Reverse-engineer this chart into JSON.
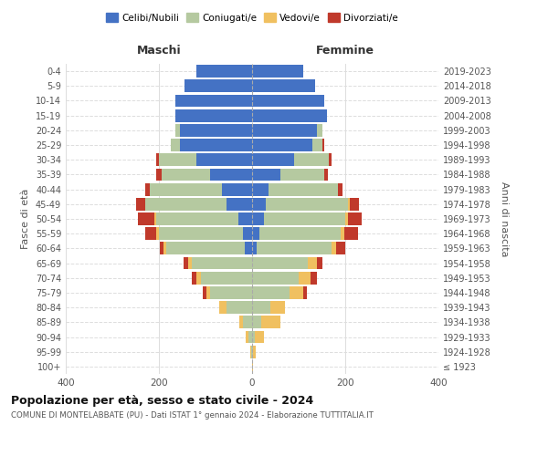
{
  "age_groups": [
    "100+",
    "95-99",
    "90-94",
    "85-89",
    "80-84",
    "75-79",
    "70-74",
    "65-69",
    "60-64",
    "55-59",
    "50-54",
    "45-49",
    "40-44",
    "35-39",
    "30-34",
    "25-29",
    "20-24",
    "15-19",
    "10-14",
    "5-9",
    "0-4"
  ],
  "birth_years": [
    "≤ 1923",
    "1924-1928",
    "1929-1933",
    "1934-1938",
    "1939-1943",
    "1944-1948",
    "1949-1953",
    "1954-1958",
    "1959-1963",
    "1964-1968",
    "1969-1973",
    "1974-1978",
    "1979-1983",
    "1984-1988",
    "1989-1993",
    "1994-1998",
    "1999-2003",
    "2004-2008",
    "2009-2013",
    "2014-2018",
    "2019-2023"
  ],
  "male": {
    "celibi": [
      0,
      0,
      0,
      0,
      0,
      0,
      0,
      0,
      15,
      20,
      30,
      55,
      65,
      90,
      120,
      155,
      155,
      165,
      165,
      145,
      120
    ],
    "coniugati": [
      0,
      2,
      8,
      20,
      55,
      90,
      110,
      130,
      170,
      180,
      175,
      175,
      155,
      105,
      80,
      20,
      10,
      0,
      0,
      0,
      0
    ],
    "vedovi": [
      0,
      2,
      5,
      8,
      15,
      8,
      10,
      8,
      5,
      5,
      5,
      0,
      0,
      0,
      0,
      0,
      0,
      0,
      0,
      0,
      0
    ],
    "divorziati": [
      0,
      0,
      0,
      0,
      0,
      8,
      10,
      10,
      8,
      25,
      35,
      20,
      10,
      10,
      5,
      0,
      0,
      0,
      0,
      0,
      0
    ]
  },
  "female": {
    "nubili": [
      0,
      0,
      0,
      0,
      0,
      0,
      0,
      0,
      10,
      15,
      25,
      30,
      35,
      60,
      90,
      130,
      140,
      160,
      155,
      135,
      110
    ],
    "coniugate": [
      0,
      2,
      5,
      20,
      40,
      80,
      100,
      120,
      160,
      175,
      175,
      175,
      150,
      95,
      75,
      20,
      10,
      0,
      0,
      0,
      0
    ],
    "vedove": [
      2,
      5,
      20,
      40,
      30,
      30,
      25,
      20,
      10,
      8,
      5,
      5,
      0,
      0,
      0,
      0,
      0,
      0,
      0,
      0,
      0
    ],
    "divorziate": [
      0,
      0,
      0,
      0,
      0,
      8,
      15,
      10,
      20,
      30,
      30,
      20,
      10,
      8,
      5,
      5,
      0,
      0,
      0,
      0,
      0
    ]
  },
  "color_celibi": "#4472c4",
  "color_coniugati": "#b5c9a0",
  "color_vedovi": "#f0c060",
  "color_divorziati": "#c0392b",
  "xlim": 400,
  "title": "Popolazione per età, sesso e stato civile - 2024",
  "subtitle": "COMUNE DI MONTELABBATE (PU) - Dati ISTAT 1° gennaio 2024 - Elaborazione TUTTITALIA.IT",
  "ylabel": "Fasce di età",
  "ylabel_right": "Anni di nascita",
  "label_maschi": "Maschi",
  "label_femmine": "Femmine",
  "legend_celibi": "Celibi/Nubili",
  "legend_coniugati": "Coniugati/e",
  "legend_vedovi": "Vedovi/e",
  "legend_divorziati": "Divorziati/e"
}
